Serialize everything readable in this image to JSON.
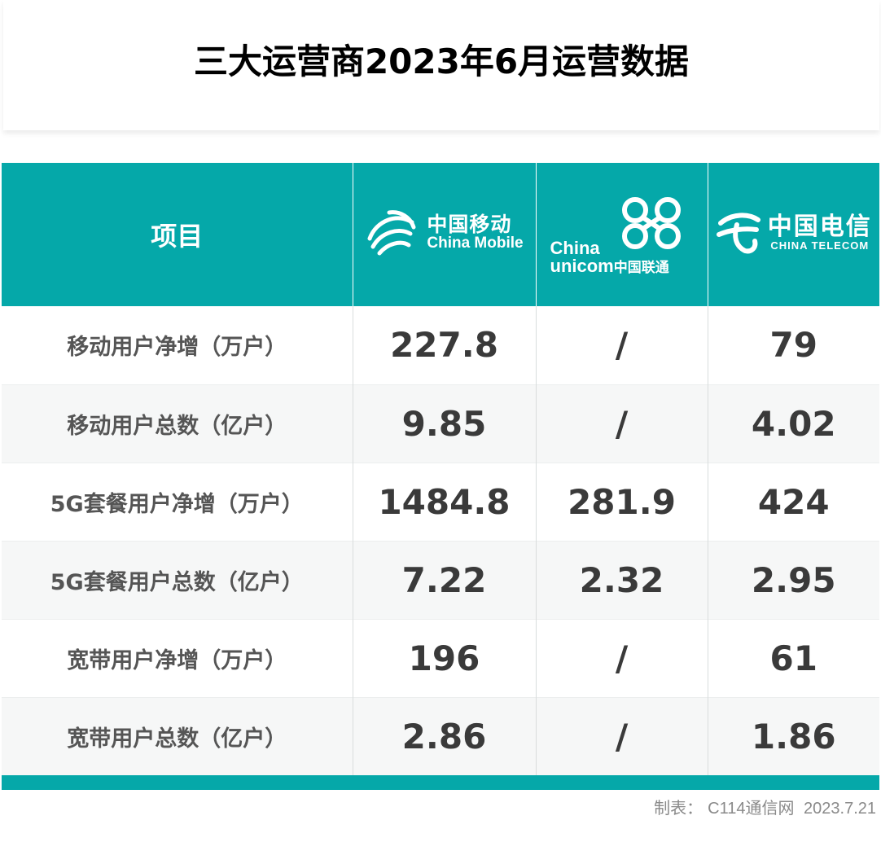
{
  "title": "三大运营商2023年6月运营数据",
  "header": {
    "item_label": "项目",
    "china_mobile": {
      "cn": "中国移动",
      "en": "China Mobile",
      "icon": "china-mobile-logo"
    },
    "china_unicom": {
      "en_line1": "China",
      "en_line2": "unicom",
      "cn": "中国联通",
      "icon": "china-unicom-knot-logo"
    },
    "china_telecom": {
      "cn": "中国电信",
      "en": "CHINA TELECOM",
      "icon": "china-telecom-logo"
    }
  },
  "colors": {
    "accent": "#05a8a9",
    "row_alt": "#f6f7f7",
    "value_text": "#3a3a3a",
    "label_text": "#555555"
  },
  "chart_data": {
    "type": "table",
    "title": "三大运营商2023年6月运营数据",
    "columns": [
      "项目",
      "中国移动",
      "中国联通",
      "中国电信"
    ],
    "rows": [
      {
        "label": "移动用户净增（万户）",
        "values": [
          "227.8",
          "/",
          "79"
        ]
      },
      {
        "label": "移动用户总数（亿户）",
        "values": [
          "9.85",
          "/",
          "4.02"
        ]
      },
      {
        "label": "5G套餐用户净增（万户）",
        "values": [
          "1484.8",
          "281.9",
          "424"
        ]
      },
      {
        "label": "5G套餐用户总数（亿户）",
        "values": [
          "7.22",
          "2.32",
          "2.95"
        ]
      },
      {
        "label": "宽带用户净增（万户）",
        "values": [
          "196",
          "/",
          "61"
        ]
      },
      {
        "label": "宽带用户总数（亿户）",
        "values": [
          "2.86",
          "/",
          "1.86"
        ]
      }
    ]
  },
  "footer": {
    "label": "制表：",
    "source": "C114通信网",
    "date": "2023.7.21"
  }
}
